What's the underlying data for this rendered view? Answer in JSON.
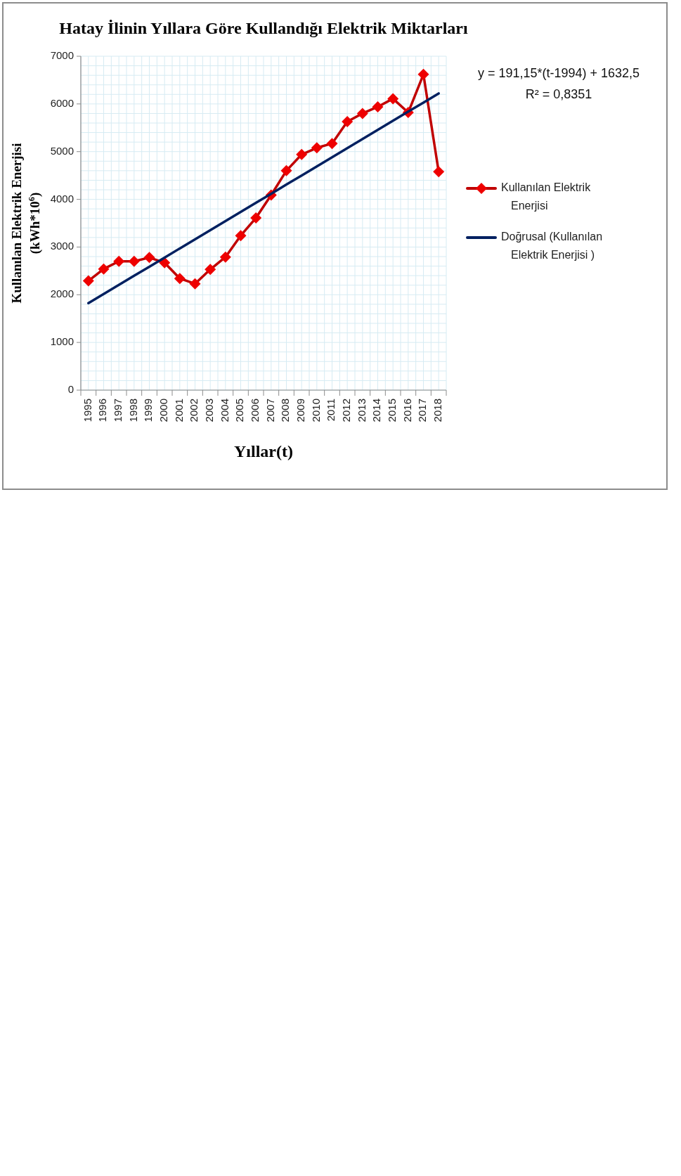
{
  "chart_data": {
    "type": "line",
    "title": "Hatay İlinin Yıllara Göre Kullandığı Elektrik Miktarları",
    "xlabel": "Yıllar(t)",
    "ylabel": "Kullanılan Elektrik Enerjisi (kWh*10$^{6}$)",
    "categories": [
      "1995",
      "1996",
      "1997",
      "1998",
      "1999",
      "2000",
      "2001",
      "2002",
      "2003",
      "2004",
      "2005",
      "2006",
      "2007",
      "2008",
      "2009",
      "2010",
      "2011",
      "2012",
      "2013",
      "2014",
      "2015",
      "2016",
      "2017",
      "2018"
    ],
    "series": [
      {
        "name": "Kullanılan Elektrik Enerjisi",
        "color": "#c00000",
        "marker": "diamond",
        "values": [
          2290,
          2540,
          2700,
          2700,
          2780,
          2670,
          2340,
          2230,
          2530,
          2790,
          3240,
          3610,
          4090,
          4600,
          4940,
          5080,
          5170,
          5630,
          5800,
          5940,
          6110,
          5820,
          6620,
          4580
        ]
      },
      {
        "name": "Doğrusal (Kullanılan Elektrik Enerjisi )",
        "color": "#002060",
        "marker": "none",
        "values": [
          1824,
          2015,
          2206,
          2397,
          2588,
          2779,
          2971,
          3162,
          3353,
          3544,
          3735,
          3926,
          4117,
          4309,
          4500,
          4691,
          4882,
          5073,
          5264,
          5456,
          5647,
          5838,
          6029,
          6220
        ]
      }
    ],
    "ylim": [
      0,
      7000
    ],
    "yticks": [
      0,
      {
        "value": 200,
        "label": null
      },
      {
        "value": 400,
        "label": null
      },
      {
        "value": 600,
        "label": null
      },
      {
        "value": 800,
        "label": null
      },
      1000,
      {
        "value": 1200,
        "label": null
      },
      {
        "value": 1400,
        "label": null
      },
      {
        "value": 1600,
        "label": null
      },
      {
        "value": 1800,
        "label": null
      },
      2000,
      {
        "value": 2200,
        "label": null
      },
      {
        "value": 2400,
        "label": null
      },
      {
        "value": 2600,
        "label": null
      },
      {
        "value": 2800,
        "label": null
      },
      3000,
      {
        "value": 3200,
        "label": null
      },
      {
        "value": 3400,
        "label": null
      },
      {
        "value": 3600,
        "label": null
      },
      {
        "value": 3800,
        "label": null
      },
      4000,
      {
        "value": 4200,
        "label": null
      },
      {
        "value": 4400,
        "label": null
      },
      {
        "value": 4600,
        "label": null
      },
      {
        "value": 4800,
        "label": null
      },
      5000,
      {
        "value": 5200,
        "label": null
      },
      {
        "value": 5400,
        "label": null
      },
      {
        "value": 5600,
        "label": null
      },
      {
        "value": 5800,
        "label": null
      },
      6000,
      {
        "value": 6200,
        "label": null
      },
      {
        "value": 6400,
        "label": null
      },
      {
        "value": 6600,
        "label": null
      },
      {
        "value": 6800,
        "label": null
      },
      7000
    ],
    "grid": true,
    "legend": "right",
    "line_style": "solid",
    "annotations": [
      "y = 191,15*(t-1994) + 1632,5",
      "R² = 0,8351"
    ]
  }
}
